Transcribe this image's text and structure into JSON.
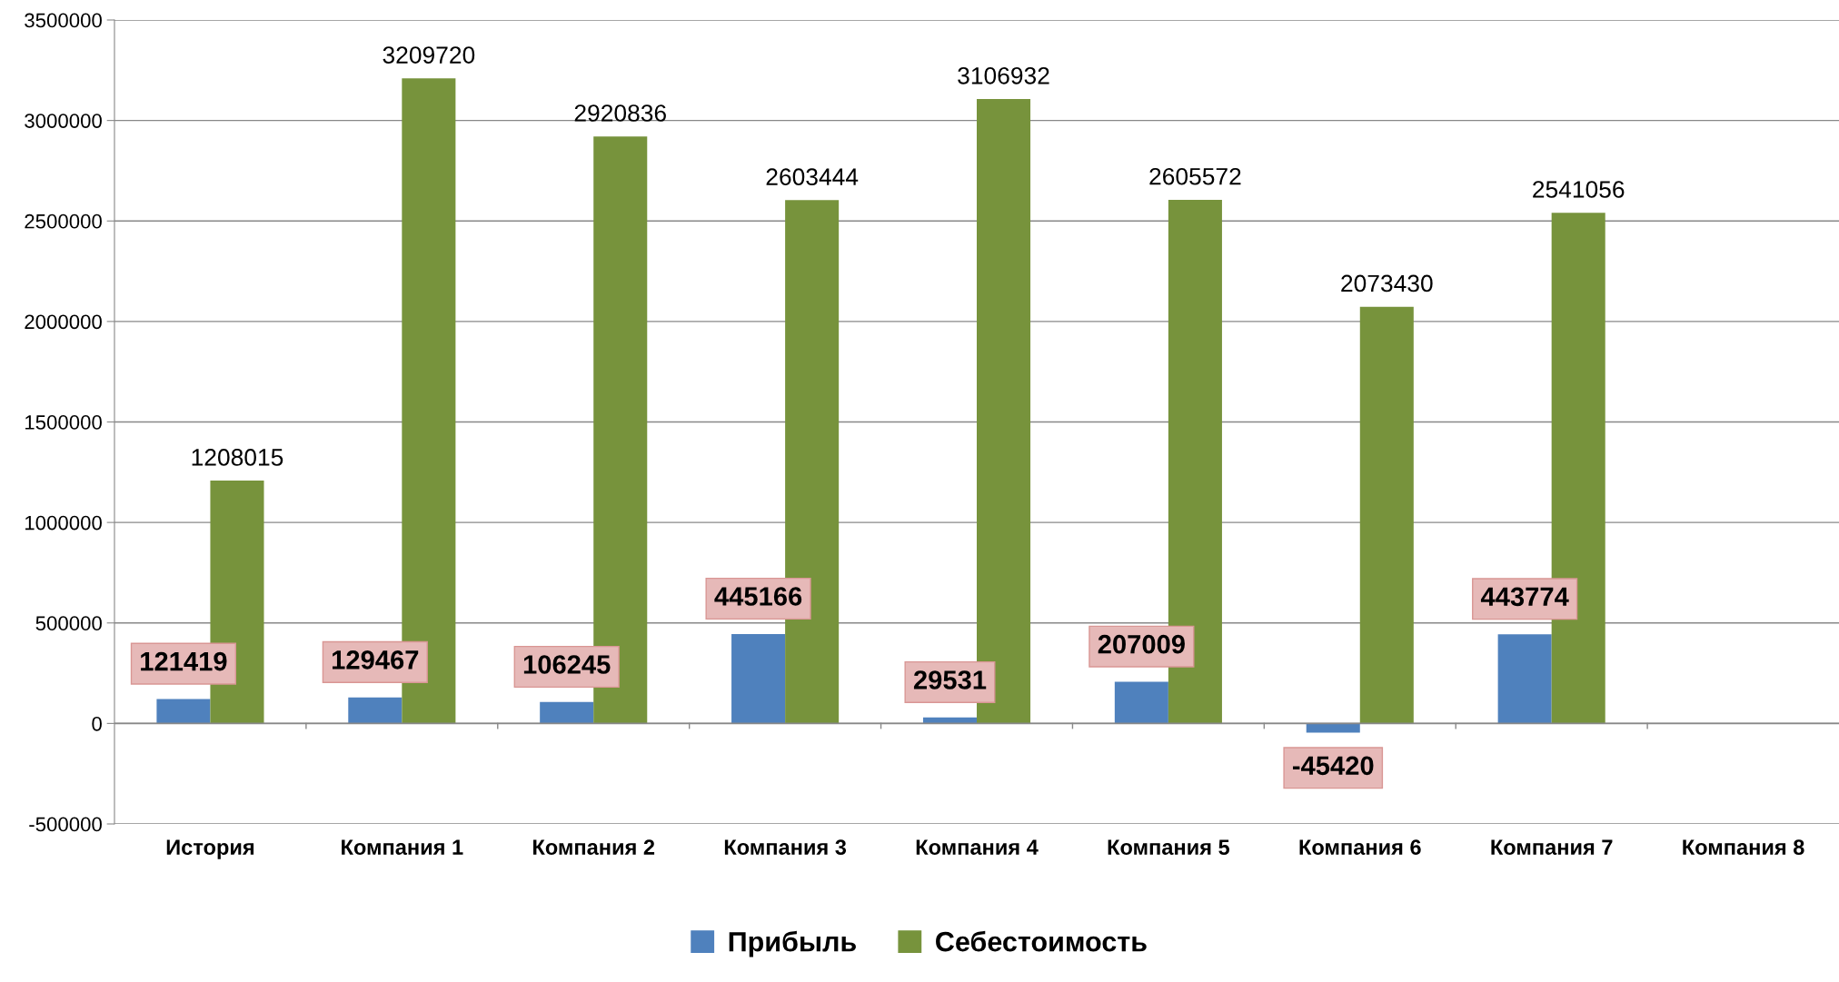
{
  "chart_data": {
    "type": "bar",
    "categories": [
      "История",
      "Компания 1",
      "Компания 2",
      "Компания 3",
      "Компания 4",
      "Компания 5",
      "Компания 6",
      "Компания 7",
      "Компания 8"
    ],
    "series": [
      {
        "name": "Прибыль",
        "color": "#4f81bd",
        "values": [
          121419,
          129467,
          106245,
          445166,
          29531,
          207009,
          -45420,
          443774,
          null
        ]
      },
      {
        "name": "Себестоимость",
        "color": "#77933c",
        "values": [
          1208015,
          3209720,
          2920836,
          2603444,
          3106932,
          2605572,
          2073430,
          2541056,
          null
        ]
      }
    ],
    "ylim": [
      -500000,
      3500000
    ],
    "yticks": [
      -500000,
      0,
      500000,
      1000000,
      1500000,
      2000000,
      2500000,
      3000000,
      3500000
    ],
    "grid": "y",
    "legend": "bottom",
    "data_labels": true
  }
}
